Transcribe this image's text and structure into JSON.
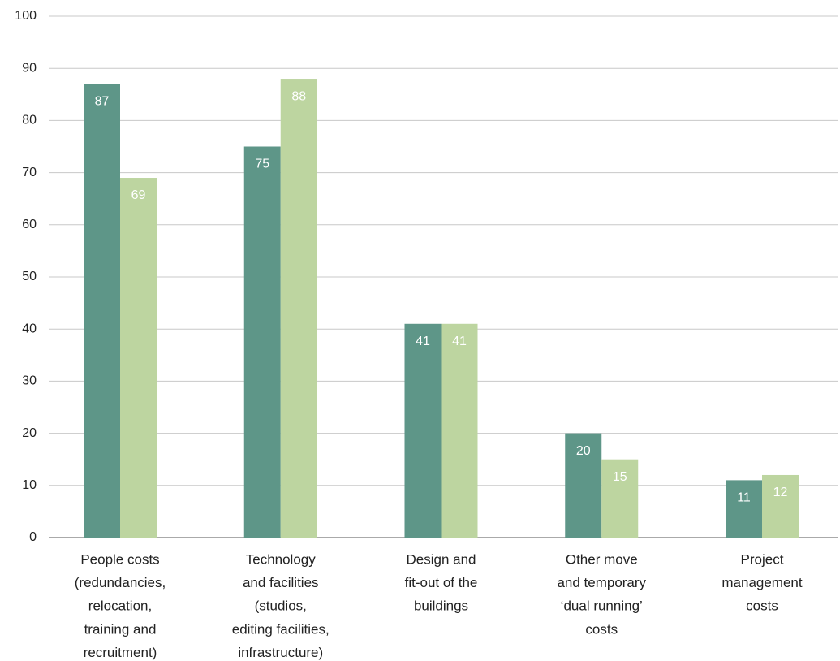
{
  "chart_data": {
    "type": "bar",
    "categories": [
      [
        "People costs",
        "(redundancies,",
        "relocation,",
        "training and",
        "recruitment)"
      ],
      [
        "Technology",
        "and facilities",
        "(studios,",
        "editing facilities,",
        "infrastructure)"
      ],
      [
        "Design and",
        "fit-out of the",
        "buildings"
      ],
      [
        "Other move",
        "and temporary",
        "‘dual running’",
        "costs"
      ],
      [
        "Project",
        "management",
        "costs"
      ]
    ],
    "series": [
      {
        "color": "#5e9688",
        "values": [
          87,
          75,
          41,
          20,
          11
        ]
      },
      {
        "color": "#bdd5a0",
        "values": [
          69,
          88,
          41,
          15,
          12
        ]
      }
    ],
    "ylim": [
      0,
      100
    ],
    "yticks": [
      0,
      10,
      20,
      30,
      40,
      50,
      60,
      70,
      80,
      90,
      100
    ],
    "grid": true
  }
}
